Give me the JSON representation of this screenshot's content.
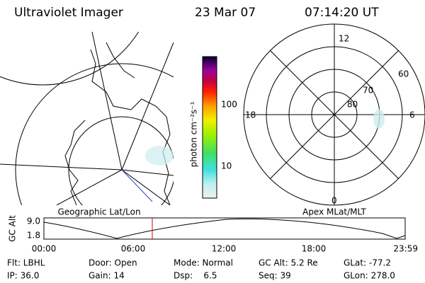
{
  "header": {
    "title": "Ultraviolet Imager",
    "date": "23 Mar 07",
    "time": "07:14:20 UT"
  },
  "colorbar": {
    "unit": "photon cm⁻²s⁻¹",
    "labels": [
      "100",
      "10"
    ]
  },
  "polar": {
    "mlt_labels": [
      "12",
      "18",
      "6",
      "0"
    ],
    "lat_labels": [
      "60",
      "70",
      "80"
    ]
  },
  "panels": [
    "Geographic Lat/Lon",
    "Apex MLat/MLT"
  ],
  "altitude": {
    "axis_label": "GC Alt",
    "y_labels": [
      "9.0",
      "1.8"
    ],
    "time_labels": [
      "00:00",
      "06:00",
      "12:00",
      "18:00",
      "23:59"
    ]
  },
  "info": [
    [
      "Flt: LBHL",
      "Door: Open",
      "Mode: Normal",
      "GC Alt: 5.2 Re",
      "GLat: -77.2"
    ],
    [
      "IP: 36.0",
      "Gain: 14",
      "Dsp:    6.5",
      "Seq: 39",
      "GLon: 278.0"
    ]
  ]
}
